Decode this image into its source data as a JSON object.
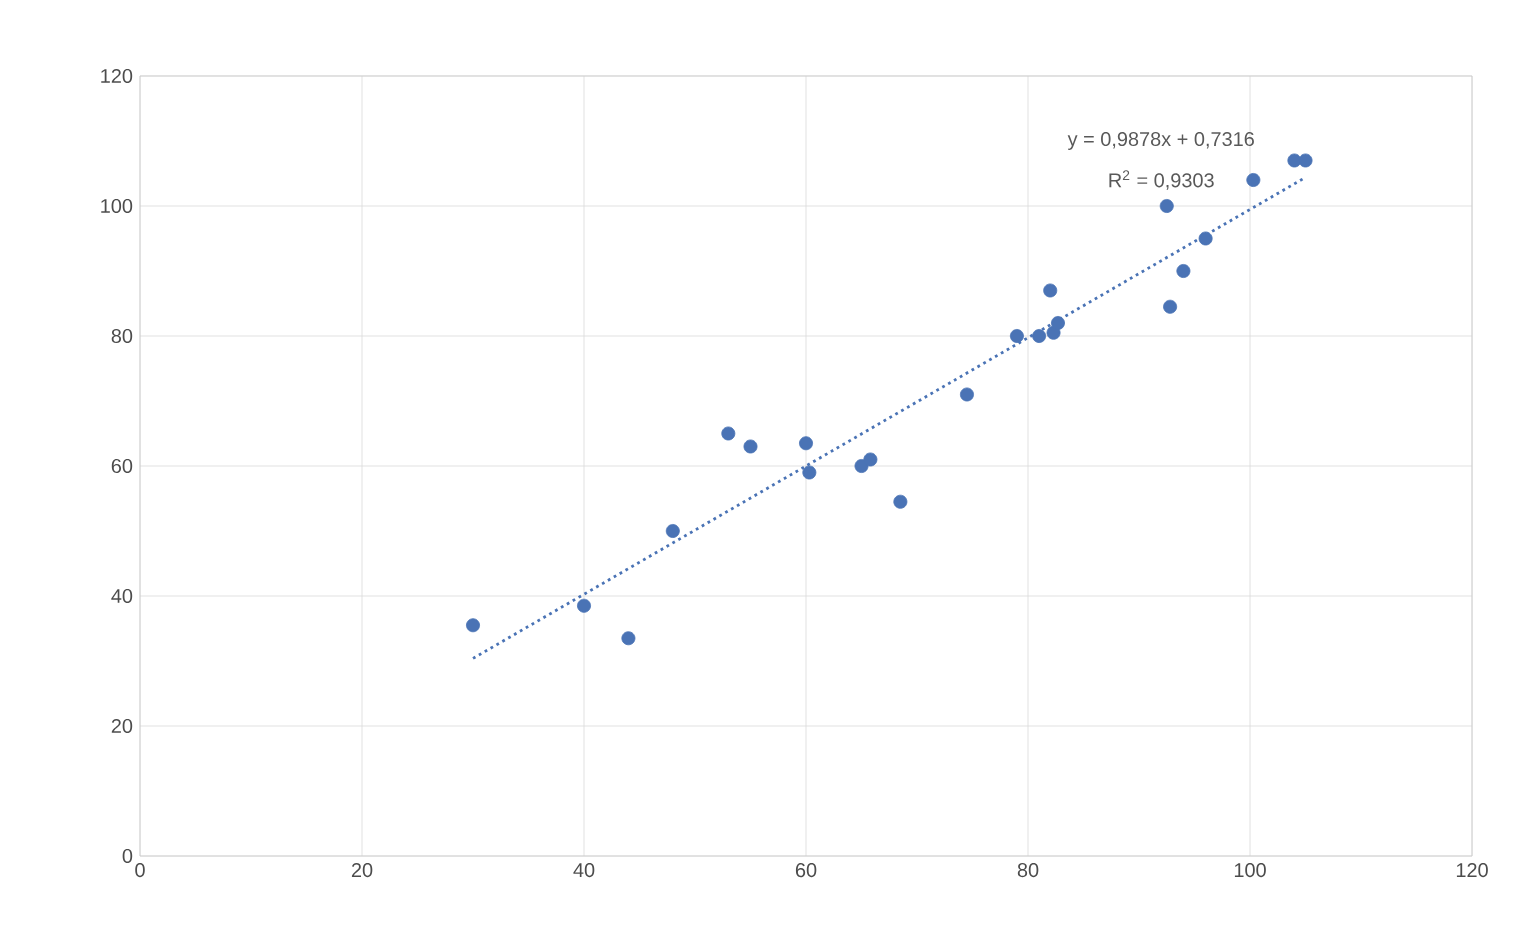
{
  "chart_data": {
    "type": "scatter",
    "xlim": [
      0,
      120
    ],
    "ylim": [
      0,
      120
    ],
    "xticks": [
      0,
      20,
      40,
      60,
      80,
      100,
      120
    ],
    "yticks": [
      0,
      20,
      40,
      60,
      80,
      100,
      120
    ],
    "grid": true,
    "marker": "circle",
    "annotations": [
      "y = 0,9878x + 0,7316",
      "R$^{2}$ = 0,9303"
    ],
    "series": [
      {
        "color": "#4a73b5",
        "x": [
          30,
          40,
          44,
          48,
          53,
          55,
          60,
          60.3,
          65,
          65.8,
          68.5,
          74.5,
          79,
          81,
          82,
          82.3,
          82.7,
          92.5,
          92.8,
          94,
          96,
          100.3,
          104,
          105
        ],
        "values": [
          35.5,
          38.5,
          33.5,
          50,
          65,
          63,
          63.5,
          59,
          60,
          61,
          54.5,
          71,
          80,
          80,
          87,
          80.5,
          82,
          100,
          84.5,
          90,
          95,
          104,
          107,
          107
        ]
      },
      {
        "type": "line",
        "color": "#4a73b5",
        "line_style": "dotted",
        "marker": "none",
        "x": [
          30,
          105
        ],
        "values": [
          30.4,
          104.4
        ]
      }
    ]
  }
}
